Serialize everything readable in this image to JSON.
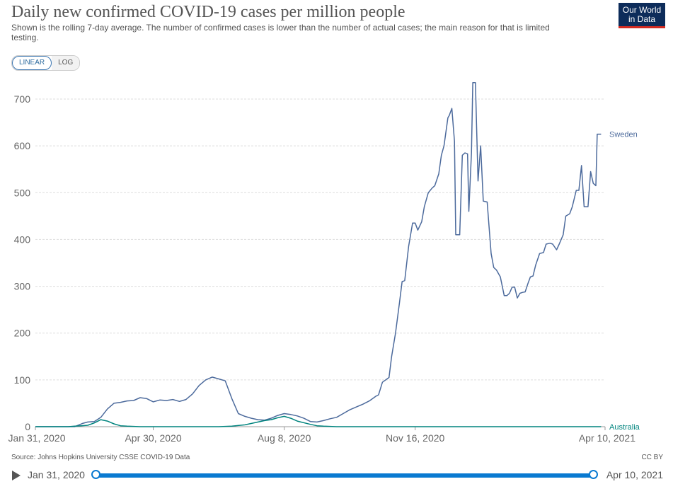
{
  "title": "Daily new confirmed COVID-19 cases per million people",
  "subtitle": "Shown is the rolling 7-day average. The number of confirmed cases is lower than the number of actual cases; the main reason for that is limited testing.",
  "logo": {
    "line1": "Our World",
    "line2": "in Data"
  },
  "scale_toggle": {
    "linear": "LINEAR",
    "log": "LOG",
    "active": "linear"
  },
  "source": "Source: Johns Hopkins University CSSE COVID-19 Data",
  "license": "CC BY",
  "timeline": {
    "start": "Jan 31, 2020",
    "end": "Apr 10, 2021"
  },
  "colors": {
    "sweden": "#4c6a9c",
    "australia": "#00847e",
    "grid": "#dddddd",
    "axis_text": "#666666"
  },
  "chart_data": {
    "type": "line",
    "title": "Daily new confirmed COVID-19 cases per million people",
    "xlabel": "",
    "ylabel": "",
    "x_unit": "days since Jan 31, 2020",
    "xlim": [
      0,
      435
    ],
    "ylim": [
      0,
      700
    ],
    "yticks": [
      0,
      100,
      200,
      300,
      400,
      500,
      600,
      700
    ],
    "xticks": [
      {
        "day": 0,
        "label": "Jan 31, 2020"
      },
      {
        "day": 90,
        "label": "Apr 30, 2020"
      },
      {
        "day": 190,
        "label": "Aug 8, 2020"
      },
      {
        "day": 290,
        "label": "Nov 16, 2020"
      },
      {
        "day": 435,
        "label": "Apr 10, 2021"
      }
    ],
    "grid": true,
    "series": [
      {
        "name": "Sweden",
        "x": [
          0,
          30,
          36,
          40,
          45,
          50,
          55,
          60,
          65,
          70,
          75,
          80,
          85,
          90,
          95,
          100,
          105,
          110,
          115,
          120,
          125,
          130,
          135,
          140,
          145,
          150,
          155,
          160,
          165,
          170,
          175,
          180,
          185,
          190,
          195,
          200,
          205,
          210,
          215,
          220,
          225,
          230,
          235,
          240,
          245,
          250,
          255,
          260,
          262,
          265,
          270,
          272,
          275,
          278,
          280,
          282,
          285,
          288,
          290,
          292,
          295,
          297,
          300,
          303,
          305,
          308,
          310,
          312,
          315,
          316,
          318,
          320,
          321,
          324,
          326,
          328,
          330,
          331,
          333,
          334,
          336,
          338,
          340,
          342,
          345,
          348,
          350,
          352,
          355,
          358,
          360,
          362,
          364,
          366,
          368,
          370,
          372,
          374,
          376,
          378,
          380,
          382,
          385,
          388,
          390,
          393,
          395,
          398,
          400,
          403,
          405,
          408,
          410,
          413,
          415,
          417,
          419,
          420,
          422,
          424,
          426,
          428,
          429,
          430,
          431,
          432
        ],
        "values": [
          0,
          0,
          7,
          10,
          11,
          20,
          38,
          50,
          52,
          55,
          56,
          62,
          60,
          53,
          57,
          56,
          58,
          54,
          58,
          70,
          88,
          100,
          106,
          102,
          98,
          60,
          28,
          22,
          18,
          15,
          14,
          18,
          24,
          28,
          26,
          23,
          18,
          11,
          10,
          13,
          17,
          20,
          28,
          36,
          42,
          48,
          55,
          65,
          68,
          95,
          105,
          150,
          200,
          265,
          310,
          312,
          385,
          435,
          435,
          420,
          438,
          470,
          500,
          510,
          515,
          540,
          580,
          600,
          660,
          665,
          680,
          610,
          410,
          410,
          580,
          585,
          583,
          460,
          585,
          735,
          735,
          525,
          600,
          482,
          480,
          370,
          340,
          335,
          320,
          280,
          280,
          285,
          298,
          298,
          275,
          285,
          287,
          288,
          305,
          320,
          322,
          345,
          370,
          372,
          390,
          392,
          390,
          378,
          390,
          410,
          450,
          455,
          470,
          505,
          505,
          558,
          470,
          470,
          470,
          545,
          520,
          515,
          625,
          625,
          625,
          625
        ]
      },
      {
        "name": "Australia",
        "x": [
          0,
          25,
          30,
          35,
          40,
          45,
          50,
          55,
          60,
          65,
          70,
          80,
          90,
          100,
          120,
          140,
          150,
          160,
          170,
          175,
          180,
          185,
          190,
          195,
          200,
          210,
          215,
          220,
          230,
          240,
          300,
          360,
          432
        ],
        "values": [
          0,
          0,
          1,
          2,
          3,
          8,
          15,
          12,
          6,
          2,
          1,
          0,
          0,
          0,
          0,
          0,
          1,
          4,
          10,
          13,
          15,
          19,
          22,
          18,
          12,
          5,
          2,
          1,
          0,
          0,
          0,
          0,
          0
        ]
      }
    ]
  }
}
